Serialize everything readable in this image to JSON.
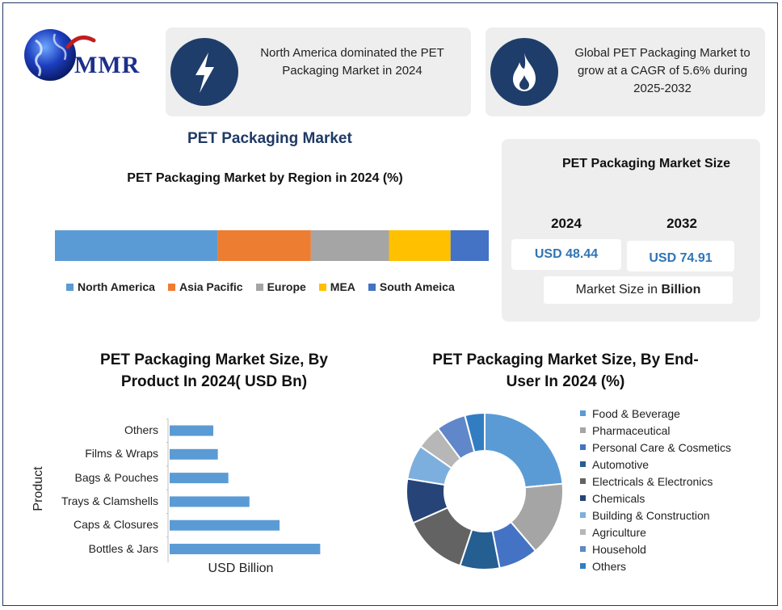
{
  "logo": {
    "text": "MMR"
  },
  "info_cards": [
    {
      "icon": "lightning-icon",
      "text": "North America dominated the PET Packaging Market in 2024"
    },
    {
      "icon": "flame-icon",
      "text": "Global PET Packaging Market to grow at a CAGR of 5.6% during 2025-2032"
    }
  ],
  "main_title": "PET Packaging Market",
  "market_size": {
    "title": "PET Packaging Market Size",
    "years": [
      "2024",
      "2032"
    ],
    "values": [
      "USD 48.44",
      "USD 74.91"
    ],
    "note_prefix": "Market Size in ",
    "note_bold": "Billion"
  },
  "chart_data": [
    {
      "type": "bar",
      "orientation": "horizontal-stacked",
      "title": "PET Packaging Market by Region in 2024 (%)",
      "categories": [
        "North America",
        "Asia Pacific",
        "Europe",
        "MEA",
        "South Ameica"
      ],
      "values": [
        37.5,
        21.5,
        18,
        14.2,
        8.8
      ],
      "colors": [
        "#5b9bd5",
        "#ed7d31",
        "#a5a5a5",
        "#ffc000",
        "#4472c4"
      ],
      "legend": "bottom"
    },
    {
      "type": "bar",
      "orientation": "horizontal",
      "title_line1": "PET Packaging Market Size, By",
      "title_line2": "Product In 2024( USD Bn)",
      "xlabel": "USD Billion",
      "ylabel": "Product",
      "categories": [
        "Others",
        "Films & Wraps",
        "Bags & Pouches",
        "Trays & Clamshells",
        "Caps & Closures",
        "Bottles & Jars"
      ],
      "values": [
        2.9,
        3.2,
        3.9,
        5.3,
        7.3,
        10.0
      ],
      "xlim": [
        0,
        11
      ],
      "color": "#5b9bd5",
      "grid": false
    },
    {
      "type": "pie",
      "variant": "donut",
      "title_line1": "PET Packaging Market Size, By End-",
      "title_line2": "User In 2024 (%)",
      "categories": [
        "Food & Beverage",
        "Pharmaceutical",
        "Personal Care & Cosmetics",
        "Automotive",
        "Electricals & Electronics",
        "Chemicals",
        "Building & Construction",
        "Agriculture",
        "Household",
        "Others"
      ],
      "values": [
        23,
        15,
        8,
        8,
        13,
        9,
        7,
        5,
        6,
        4
      ],
      "colors": [
        "#5b9bd5",
        "#a5a5a5",
        "#4472c4",
        "#255e91",
        "#636363",
        "#264478",
        "#7cafdd",
        "#b7b7b7",
        "#5f87c9",
        "#327dc2"
      ],
      "legend": "right"
    }
  ]
}
